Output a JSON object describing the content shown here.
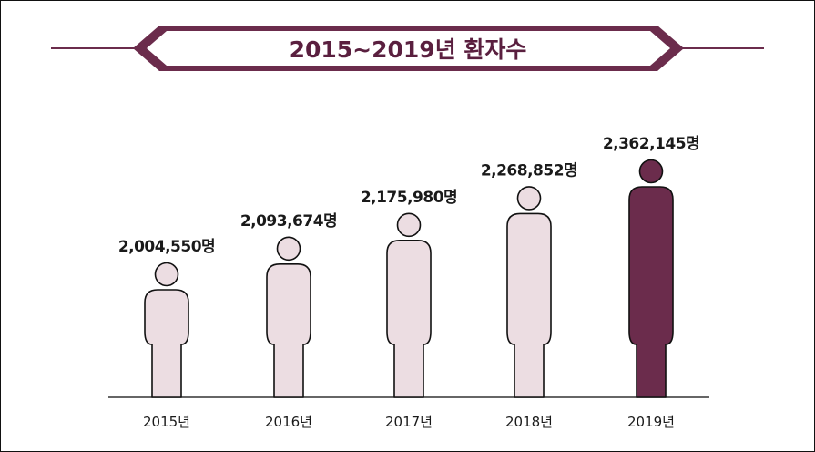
{
  "colors": {
    "accent": "#6b2c4c",
    "bar_light": "#ecdde2",
    "outline": "#111111",
    "banner_fill": "#ffffff"
  },
  "chart_data": {
    "type": "bar",
    "title": "2015~2019년 환자수",
    "xlabel": "",
    "ylabel": "",
    "categories": [
      "2015년",
      "2016년",
      "2017년",
      "2018년",
      "2019년"
    ],
    "values": [
      2004550,
      2093674,
      2175980,
      2268852,
      2362145
    ],
    "value_labels": [
      "2,004,550명",
      "2,093,674명",
      "2,175,980명",
      "2,268,852명",
      "2,362,145명"
    ],
    "highlight_index": 4,
    "grid": false,
    "legend": "none",
    "mark": "person-pictogram"
  }
}
